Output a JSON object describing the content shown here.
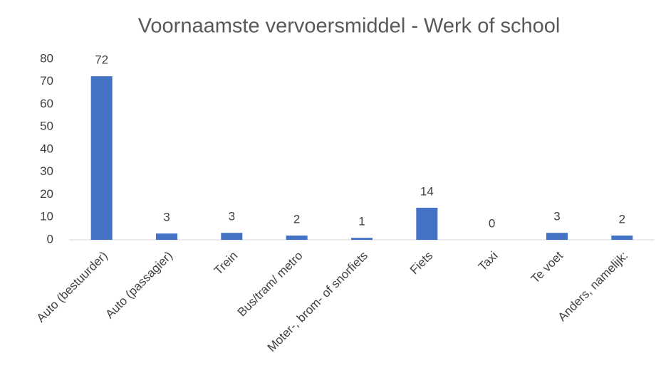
{
  "chart_data": {
    "type": "bar",
    "title": "Voornaamste vervoersmiddel - Werk of school",
    "categories": [
      "Auto (bestuurder)",
      "Auto (passagier)",
      "Trein",
      "Bus/tram/ metro",
      "Moter-, brom- of snorfiets",
      "Fiets",
      "Taxi",
      "Te voet",
      "Anders, namelijk:"
    ],
    "values": [
      72.4,
      2.8,
      3.1,
      1.9,
      0.9,
      14.2,
      0,
      3.1,
      1.9
    ],
    "value_labels": [
      "72",
      "3",
      "3",
      "2",
      "1",
      "14",
      "0",
      "3",
      "2"
    ],
    "color": "#4472c4",
    "ylim": [
      0,
      80
    ],
    "yticks": [
      0,
      10,
      20,
      30,
      40,
      50,
      60,
      70,
      80
    ],
    "grid": false
  }
}
